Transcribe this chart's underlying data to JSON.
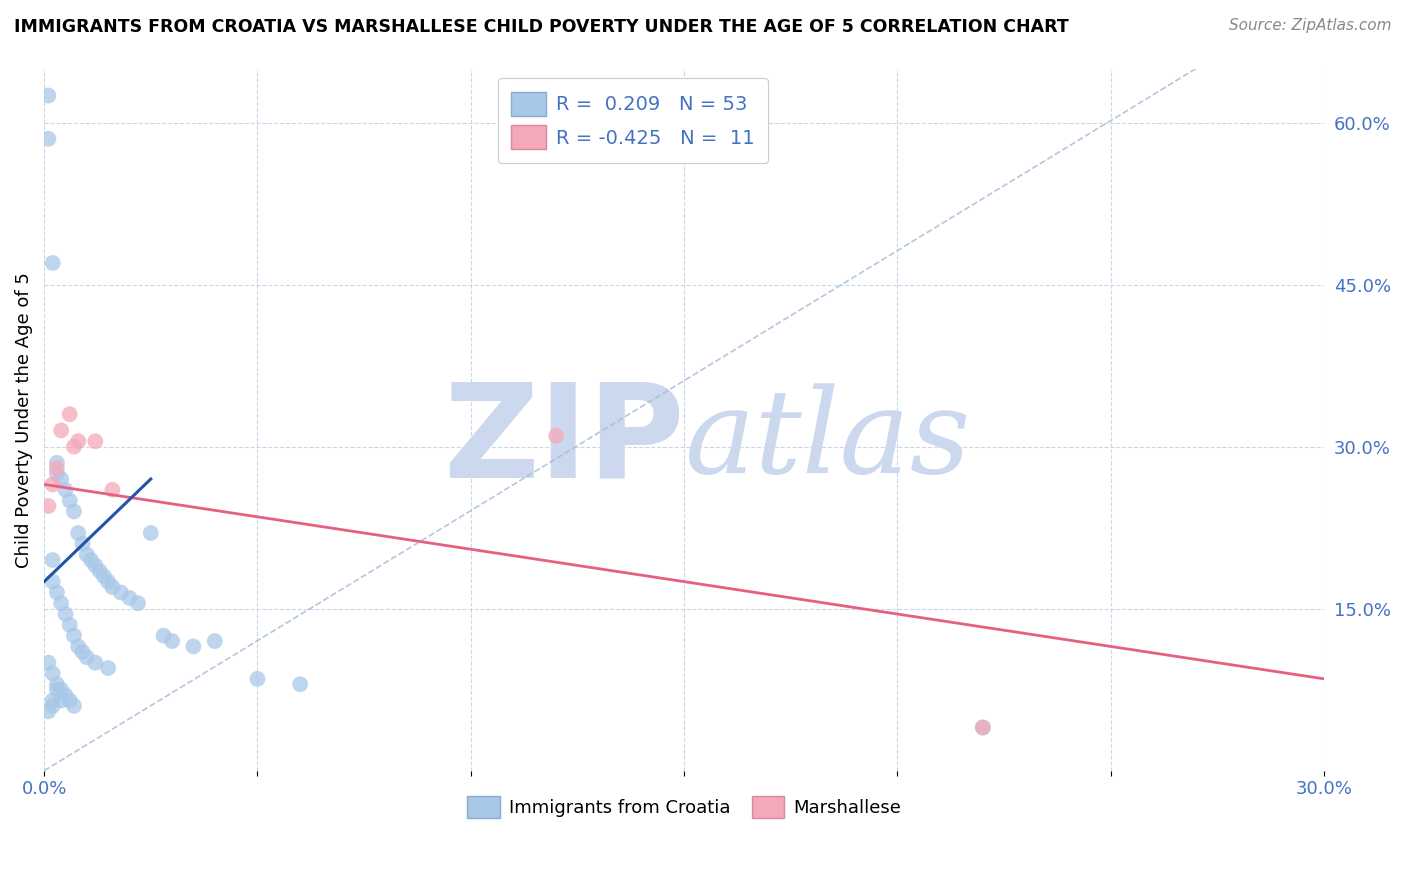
{
  "title": "IMMIGRANTS FROM CROATIA VS MARSHALLESE CHILD POVERTY UNDER THE AGE OF 5 CORRELATION CHART",
  "source": "Source: ZipAtlas.com",
  "ylabel": "Child Poverty Under the Age of 5",
  "xlim": [
    0.0,
    0.3
  ],
  "ylim": [
    0.0,
    0.65
  ],
  "xticks": [
    0.0,
    0.05,
    0.1,
    0.15,
    0.2,
    0.25,
    0.3
  ],
  "xticklabels": [
    "0.0%",
    "",
    "",
    "",
    "",
    "",
    "30.0%"
  ],
  "yticks_right": [
    0.0,
    0.15,
    0.3,
    0.45,
    0.6
  ],
  "yticklabels_right": [
    "",
    "15.0%",
    "30.0%",
    "45.0%",
    "60.0%"
  ],
  "R_blue": 0.209,
  "N_blue": 53,
  "R_pink": -0.425,
  "N_pink": 11,
  "blue_color": "#a8c8e8",
  "pink_color": "#f4a8b8",
  "blue_line_color": "#2255aa",
  "pink_line_color": "#e86080",
  "grid_color": "#c8d8e8",
  "watermark_color": "#ccd8ee",
  "blue_scatter_x": [
    0.001,
    0.001,
    0.001,
    0.002,
    0.002,
    0.002,
    0.002,
    0.003,
    0.003,
    0.003,
    0.003,
    0.004,
    0.004,
    0.004,
    0.005,
    0.005,
    0.005,
    0.006,
    0.006,
    0.006,
    0.007,
    0.007,
    0.007,
    0.008,
    0.008,
    0.009,
    0.009,
    0.01,
    0.01,
    0.011,
    0.012,
    0.012,
    0.013,
    0.014,
    0.015,
    0.015,
    0.016,
    0.018,
    0.02,
    0.022,
    0.025,
    0.028,
    0.03,
    0.035,
    0.04,
    0.05,
    0.06,
    0.001,
    0.002,
    0.003,
    0.004,
    0.002,
    0.22
  ],
  "blue_scatter_y": [
    0.585,
    0.625,
    0.1,
    0.47,
    0.195,
    0.175,
    0.09,
    0.285,
    0.275,
    0.165,
    0.08,
    0.27,
    0.155,
    0.075,
    0.26,
    0.145,
    0.07,
    0.25,
    0.135,
    0.065,
    0.24,
    0.125,
    0.06,
    0.22,
    0.115,
    0.21,
    0.11,
    0.2,
    0.105,
    0.195,
    0.19,
    0.1,
    0.185,
    0.18,
    0.175,
    0.095,
    0.17,
    0.165,
    0.16,
    0.155,
    0.22,
    0.125,
    0.12,
    0.115,
    0.12,
    0.085,
    0.08,
    0.055,
    0.065,
    0.075,
    0.065,
    0.06,
    0.04
  ],
  "pink_scatter_x": [
    0.001,
    0.002,
    0.004,
    0.006,
    0.008,
    0.012,
    0.016,
    0.12,
    0.22,
    0.003,
    0.007
  ],
  "pink_scatter_y": [
    0.245,
    0.265,
    0.315,
    0.33,
    0.305,
    0.305,
    0.26,
    0.31,
    0.04,
    0.28,
    0.3
  ],
  "blue_trend_x": [
    0.0,
    0.025
  ],
  "blue_trend_y": [
    0.175,
    0.27
  ],
  "pink_trend_x": [
    0.0,
    0.3
  ],
  "pink_trend_y": [
    0.265,
    0.085
  ],
  "dashed_trend_x": [
    0.0,
    0.27
  ],
  "dashed_trend_y": [
    0.0,
    0.65
  ]
}
